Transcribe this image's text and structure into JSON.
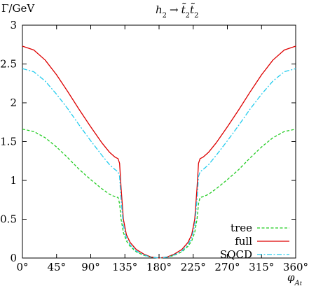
{
  "chart_data": {
    "type": "line",
    "title": "h₂ → t̃₂t̃₂",
    "xlabel": "φ A t",
    "ylabel": "Γ/GeV",
    "xlim": [
      0,
      360
    ],
    "ylim": [
      0,
      3
    ],
    "xticks": [
      0,
      45,
      90,
      135,
      180,
      225,
      270,
      315,
      360
    ],
    "xtick_labels": [
      "0°",
      "45°",
      "90°",
      "135°",
      "180°",
      "225°",
      "270°",
      "315°",
      "360°"
    ],
    "yticks": [
      0,
      0.5,
      1,
      1.5,
      2,
      2.5,
      3
    ],
    "ytick_labels": [
      "0",
      "0.5",
      "1",
      "1.5",
      "2",
      "2.5",
      "3"
    ],
    "grid": false,
    "legend_position": "bottom-right",
    "x": [
      0,
      15,
      30,
      45,
      60,
      75,
      90,
      105,
      115,
      122,
      126,
      128,
      130,
      133,
      137,
      142,
      150,
      160,
      170,
      180,
      190,
      200,
      210,
      218,
      223,
      227,
      230,
      232,
      234,
      238,
      245,
      255,
      270,
      285,
      300,
      315,
      330,
      345,
      360
    ],
    "series": [
      {
        "name": "tree",
        "color": "#22cc22",
        "dash": "4,2.5",
        "values": [
          1.66,
          1.63,
          1.55,
          1.43,
          1.29,
          1.14,
          1.01,
          0.89,
          0.82,
          0.79,
          0.78,
          0.7,
          0.5,
          0.33,
          0.22,
          0.15,
          0.08,
          0.035,
          0.01,
          0.0,
          0.01,
          0.035,
          0.08,
          0.15,
          0.22,
          0.33,
          0.5,
          0.7,
          0.78,
          0.79,
          0.82,
          0.89,
          1.01,
          1.14,
          1.29,
          1.43,
          1.55,
          1.63,
          1.66
        ]
      },
      {
        "name": "full",
        "color": "#dd0000",
        "dash": "",
        "values": [
          2.73,
          2.68,
          2.55,
          2.36,
          2.14,
          1.91,
          1.69,
          1.48,
          1.36,
          1.3,
          1.28,
          1.22,
          0.9,
          0.5,
          0.3,
          0.2,
          0.11,
          0.05,
          0.012,
          0.0,
          0.012,
          0.05,
          0.11,
          0.2,
          0.3,
          0.5,
          0.9,
          1.22,
          1.28,
          1.3,
          1.36,
          1.48,
          1.69,
          1.91,
          2.14,
          2.36,
          2.55,
          2.68,
          2.73
        ]
      },
      {
        "name": "SQCD",
        "color": "#22ccee",
        "dash": "7,2.5,2,2.5",
        "values": [
          2.44,
          2.4,
          2.28,
          2.11,
          1.92,
          1.71,
          1.51,
          1.32,
          1.2,
          1.14,
          1.11,
          1.05,
          0.75,
          0.42,
          0.26,
          0.17,
          0.09,
          0.04,
          0.01,
          0.0,
          0.01,
          0.04,
          0.09,
          0.17,
          0.26,
          0.42,
          0.75,
          1.05,
          1.11,
          1.14,
          1.2,
          1.32,
          1.51,
          1.71,
          1.92,
          2.11,
          2.28,
          2.4,
          2.44
        ]
      }
    ]
  }
}
